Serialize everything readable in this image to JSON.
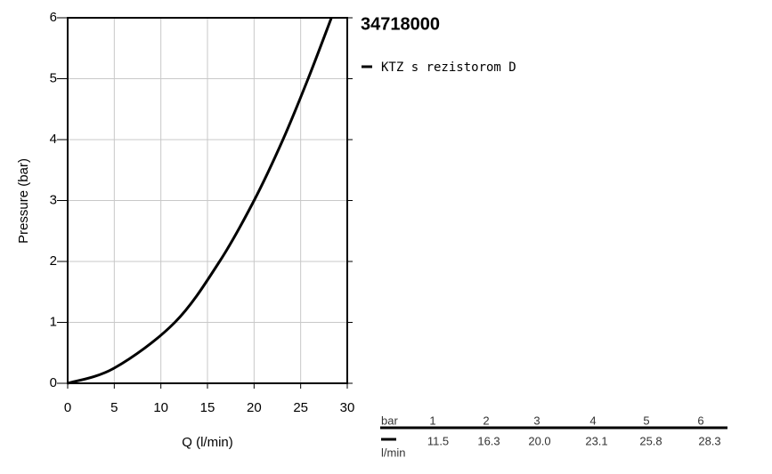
{
  "chart_data": {
    "type": "line",
    "title": "34718000",
    "x_label": "Q (l/min)",
    "y_label": "Pressure (bar)",
    "x": [
      0,
      5,
      11.5,
      16.3,
      20.0,
      23.1,
      25.8,
      28.3
    ],
    "series": [
      {
        "name": "KTZ s rezistorom D",
        "color": "#000000",
        "values": [
          0,
          0.25,
          1,
          2,
          3,
          4,
          5,
          6
        ]
      }
    ],
    "xlim": [
      0,
      30
    ],
    "xticks": [
      0,
      5,
      10,
      15,
      20,
      25,
      30
    ],
    "ylim": [
      0,
      6
    ],
    "yticks": [
      0,
      1,
      2,
      3,
      4,
      5,
      6
    ],
    "grid": true
  },
  "table": {
    "pressure_unit": "bar",
    "pressures": [
      "1",
      "2",
      "3",
      "4",
      "5",
      "6"
    ],
    "flow_unit": "l/min",
    "flows": [
      "11.5",
      "16.3",
      "20.0",
      "23.1",
      "25.8",
      "28.3"
    ]
  }
}
